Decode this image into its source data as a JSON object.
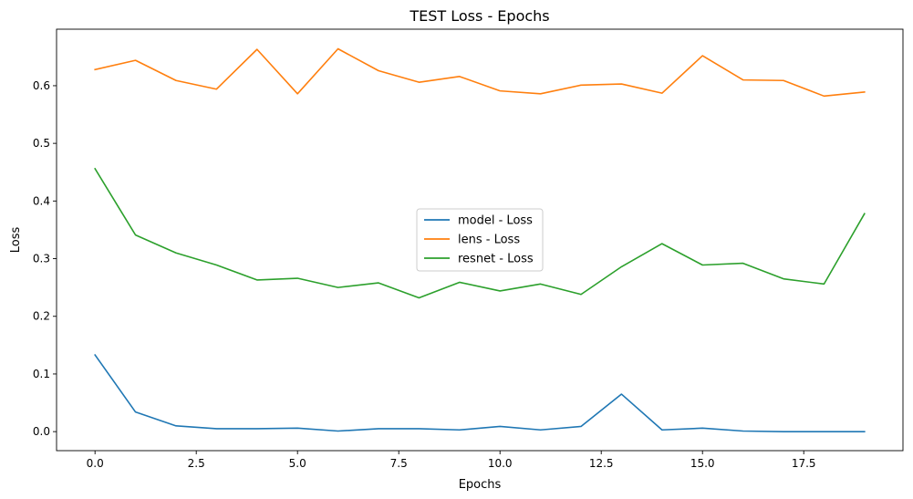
{
  "chart_data": {
    "type": "line",
    "title": "TEST Loss - Epochs",
    "xlabel": "Epochs",
    "ylabel": "Loss",
    "xlim": [
      -0.95,
      19.95
    ],
    "ylim": [
      -0.033,
      0.698
    ],
    "xticks": [
      0,
      2.5,
      5,
      7.5,
      10,
      12.5,
      15,
      17.5
    ],
    "xtick_labels": [
      "0.0",
      "2.5",
      "5.0",
      "7.5",
      "10.0",
      "12.5",
      "15.0",
      "17.5"
    ],
    "yticks": [
      0,
      0.1,
      0.2,
      0.3,
      0.4,
      0.5,
      0.6
    ],
    "ytick_labels": [
      "0.0",
      "0.1",
      "0.2",
      "0.3",
      "0.4",
      "0.5",
      "0.6"
    ],
    "grid": false,
    "legend_position": "center",
    "x": [
      0,
      1,
      2,
      3,
      4,
      5,
      6,
      7,
      8,
      9,
      10,
      11,
      12,
      13,
      14,
      15,
      16,
      17,
      18,
      19
    ],
    "series": [
      {
        "name": "model - Loss",
        "color": "#1f77b4",
        "values": [
          0.133,
          0.034,
          0.01,
          0.005,
          0.005,
          0.006,
          0.001,
          0.005,
          0.005,
          0.003,
          0.009,
          0.003,
          0.009,
          0.065,
          0.003,
          0.006,
          0.001,
          0.0,
          0.0,
          0.0
        ]
      },
      {
        "name": "lens - Loss",
        "color": "#ff7f0e",
        "values": [
          0.628,
          0.644,
          0.609,
          0.594,
          0.663,
          0.586,
          0.664,
          0.626,
          0.606,
          0.616,
          0.591,
          0.586,
          0.601,
          0.603,
          0.587,
          0.652,
          0.61,
          0.609,
          0.582,
          0.589
        ]
      },
      {
        "name": "resnet - Loss",
        "color": "#2ca02c",
        "values": [
          0.456,
          0.341,
          0.31,
          0.289,
          0.263,
          0.266,
          0.25,
          0.258,
          0.232,
          0.259,
          0.244,
          0.256,
          0.238,
          0.286,
          0.326,
          0.289,
          0.292,
          0.265,
          0.256,
          0.378
        ]
      }
    ]
  }
}
